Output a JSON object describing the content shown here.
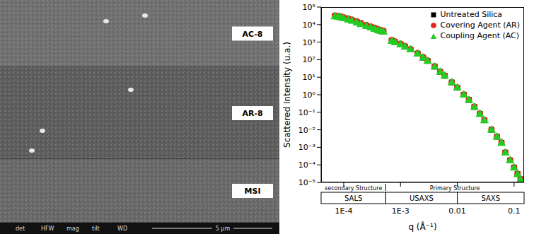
{
  "sem_images": {
    "labels": [
      "AC-8",
      "AR-8",
      "MSI"
    ],
    "info_bar": [
      "det",
      "HFW",
      "mag",
      "tilt",
      "WD"
    ],
    "scale_bar": "5 µm"
  },
  "chart_data": {
    "type": "scatter",
    "y_label": "Scattered Intensity (u.a.)",
    "x_label": "q (Å⁻¹)",
    "log": true,
    "grid": false,
    "legend": "upper right",
    "xlim": [
      4e-05,
      0.15
    ],
    "ylim": [
      1e-05,
      100000
    ],
    "xticks": [
      {
        "value": 0.0001,
        "label": "1E-4"
      },
      {
        "value": 0.001,
        "label": "1E-3"
      },
      0.01,
      0.1
    ],
    "yticks": [
      {
        "value": 1e-05,
        "label": "10⁻⁵"
      },
      {
        "value": 0.0001,
        "label": "10⁻⁴"
      },
      {
        "value": 0.001,
        "label": "10⁻³"
      },
      {
        "value": 0.01,
        "label": "10⁻²"
      },
      {
        "value": 0.1,
        "label": "10⁻¹"
      },
      {
        "value": 1,
        "label": "10⁰"
      },
      {
        "value": 10,
        "label": "10¹"
      },
      {
        "value": 100,
        "label": "10²"
      },
      {
        "value": 1000,
        "label": "10³"
      },
      {
        "value": 10000,
        "label": "10⁴"
      },
      {
        "value": 100000,
        "label": "10⁵"
      }
    ],
    "x": [
      7e-05,
      8e-05,
      9e-05,
      0.0001,
      0.00012,
      0.00014,
      0.00017,
      0.0002,
      0.00025,
      0.0003,
      0.00035,
      0.0004,
      0.00045,
      0.0005,
      0.0007,
      0.0008,
      0.001,
      0.0012,
      0.0015,
      0.002,
      0.0025,
      0.003,
      0.004,
      0.005,
      0.006,
      0.008,
      0.01,
      0.013,
      0.016,
      0.02,
      0.025,
      0.03,
      0.04,
      0.05,
      0.06,
      0.07,
      0.085,
      0.1,
      0.115,
      0.13
    ],
    "series": [
      {
        "name": "Untreated Silica",
        "color": "#000000",
        "marker": "square",
        "values": [
          30000,
          28000,
          26000,
          24000,
          20000,
          17000,
          14000,
          11000,
          8500,
          7000,
          6000,
          5000,
          4500,
          4000,
          1200,
          1000,
          750,
          550,
          380,
          220,
          130,
          85,
          40,
          20,
          12,
          5,
          2.5,
          1,
          0.5,
          0.2,
          0.08,
          0.035,
          0.01,
          0.004,
          0.0018,
          0.0005,
          0.00018,
          7e-05,
          3e-05,
          1.5e-05
        ]
      },
      {
        "name": "Covering Agent (AR)",
        "color": "#e8221b",
        "marker": "circle",
        "values": [
          33000,
          31000,
          29000,
          26000,
          22000,
          19000,
          15500,
          12500,
          9500,
          7800,
          6600,
          5500,
          5000,
          4500,
          1300,
          1100,
          820,
          600,
          410,
          240,
          140,
          90,
          42,
          21,
          12.5,
          5.2,
          2.6,
          1.05,
          0.52,
          0.21,
          0.085,
          0.036,
          0.0105,
          0.0042,
          0.0019,
          0.00052,
          0.00019,
          7.3e-05,
          3.1e-05,
          1.6e-05
        ]
      },
      {
        "name": "Coupling Agent (AC)",
        "color": "#22cc22",
        "marker": "triangle",
        "values": [
          28000,
          26000,
          24000,
          22000,
          18500,
          15500,
          12500,
          10000,
          7800,
          6400,
          5400,
          4600,
          4100,
          3700,
          1100,
          950,
          700,
          520,
          360,
          210,
          125,
          80,
          38,
          19,
          11.5,
          4.8,
          2.4,
          0.95,
          0.48,
          0.19,
          0.077,
          0.033,
          0.0095,
          0.0038,
          0.0017,
          0.00047,
          0.00017,
          6.6e-05,
          2.8e-05,
          1.4e-05
        ]
      }
    ],
    "structures": [
      {
        "label": "secondary Structure",
        "from": 4e-05,
        "to": 0.00055
      },
      {
        "label": "Primary Structure",
        "from": 0.00055,
        "to": 0.15
      }
    ],
    "regions": [
      {
        "label": "SALS",
        "from": 4e-05,
        "to": 0.00055
      },
      {
        "label": "USAXS",
        "from": 0.00055,
        "to": 0.01
      },
      {
        "label": "SAXS",
        "from": 0.01,
        "to": 0.15
      }
    ]
  }
}
